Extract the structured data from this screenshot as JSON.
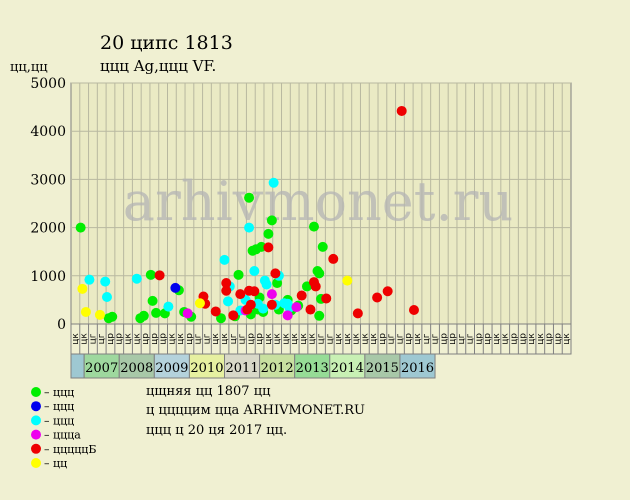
{
  "header": {
    "title": "20 ципс 1813",
    "subtitle": "ццц Ag,ццц VF.",
    "y_unit": "цц,цц"
  },
  "watermark": "arhivmonet.ru",
  "legend": [
    {
      "label": "– ццц",
      "color": "#00ee00"
    },
    {
      "label": "– ццц",
      "color": "#0000ee"
    },
    {
      "label": "– ццц",
      "color": "#00ffff"
    },
    {
      "label": "– цццa",
      "color": "#ee00ee"
    },
    {
      "label": "– цццццБ",
      "color": "#ee0000"
    },
    {
      "label": "– цц",
      "color": "#ffff00"
    }
  ],
  "notes": [
    "цщняя цц 1807 цц",
    "ц ццццим цца ARHIVMONET.RU",
    "ццц ц 20 ця 2017 цц."
  ],
  "chart_data": {
    "type": "scatter",
    "title": "20 ципс 1813",
    "subtitle": "ццц Ag,ццц VF.",
    "ylabel": "цц,цц",
    "ylim": [
      0,
      5000
    ],
    "yticks": [
      0,
      1000,
      2000,
      3000,
      4000,
      5000
    ],
    "grid": true,
    "x_first_year": 2007,
    "quarter_labels": [
      "цк",
      "цк",
      "цг",
      "цг",
      "цр",
      "цр",
      "цк",
      "цк",
      "цр",
      "цр",
      "цр",
      "цк",
      "цк",
      "цр",
      "цг",
      "цг",
      "цк",
      "цк",
      "цг",
      "цг",
      "цр",
      "цр",
      "цк",
      "цк",
      "цк",
      "цк",
      "цк",
      "цк",
      "цг",
      "цг",
      "цк",
      "цк",
      "цк",
      "цк",
      "цк",
      "цр",
      "цг",
      "цг",
      "цр",
      "цк",
      "цг",
      "цг",
      "цр",
      "цр",
      "цг",
      "цг",
      "цр",
      "цр",
      "цк",
      "цк",
      "цр",
      "цр",
      "цк",
      "цк",
      "цр",
      "цр",
      "цк"
    ],
    "year_labels": [
      {
        "label": "",
        "color": "#9ec8d2"
      },
      {
        "label": "2007",
        "color": "#9ed89e"
      },
      {
        "label": "2008",
        "color": "#a8c8a8"
      },
      {
        "label": "2009",
        "color": "#b4d2dc"
      },
      {
        "label": "2010",
        "color": "#e6f0a0"
      },
      {
        "label": "2011",
        "color": "#d8d8c8"
      },
      {
        "label": "2012",
        "color": "#c8e0a0"
      },
      {
        "label": "2013",
        "color": "#96dc96"
      },
      {
        "label": "2014",
        "color": "#c8f0b4"
      },
      {
        "label": "2015",
        "color": "#a8c8a8"
      },
      {
        "label": "2016",
        "color": "#9ec8d2"
      }
    ],
    "series": [
      {
        "color": "#00ee00",
        "points": [
          [
            2006.9,
            2000
          ],
          [
            2007.7,
            120
          ],
          [
            2007.8,
            150
          ],
          [
            2008.6,
            120
          ],
          [
            2008.7,
            170
          ],
          [
            2008.9,
            1020
          ],
          [
            2008.95,
            480
          ],
          [
            2009.05,
            230
          ],
          [
            2009.3,
            220
          ],
          [
            2009.7,
            700
          ],
          [
            2009.85,
            250
          ],
          [
            2010.05,
            150
          ],
          [
            2010.9,
            120
          ],
          [
            2011.3,
            160
          ],
          [
            2011.4,
            1020
          ],
          [
            2011.7,
            2620
          ],
          [
            2011.75,
            200
          ],
          [
            2011.8,
            1520
          ],
          [
            2011.9,
            1550
          ],
          [
            2011.95,
            300
          ],
          [
            2012.0,
            550
          ],
          [
            2012.05,
            1600
          ],
          [
            2012.1,
            250
          ],
          [
            2012.25,
            1870
          ],
          [
            2012.35,
            2150
          ],
          [
            2012.5,
            850
          ],
          [
            2012.55,
            300
          ],
          [
            2012.8,
            500
          ],
          [
            2012.9,
            280
          ],
          [
            2013.1,
            380
          ],
          [
            2013.35,
            780
          ],
          [
            2013.55,
            2020
          ],
          [
            2013.65,
            1100
          ],
          [
            2013.7,
            170
          ],
          [
            2013.75,
            520
          ],
          [
            2013.8,
            1600
          ],
          [
            2013.7,
            1050
          ]
        ]
      },
      {
        "color": "#0000ee",
        "points": [
          [
            2009.6,
            750
          ]
        ]
      },
      {
        "color": "#00ffff",
        "points": [
          [
            2007.15,
            920
          ],
          [
            2007.6,
            880
          ],
          [
            2007.65,
            560
          ],
          [
            2008.5,
            940
          ],
          [
            2009.4,
            360
          ],
          [
            2011.0,
            1330
          ],
          [
            2011.1,
            470
          ],
          [
            2011.15,
            780
          ],
          [
            2011.45,
            280
          ],
          [
            2011.6,
            500
          ],
          [
            2011.7,
            2000
          ],
          [
            2011.85,
            1100
          ],
          [
            2011.95,
            420
          ],
          [
            2012.1,
            320
          ],
          [
            2012.15,
            900
          ],
          [
            2012.2,
            820
          ],
          [
            2012.4,
            2930
          ],
          [
            2012.45,
            400
          ],
          [
            2012.55,
            1000
          ],
          [
            2012.7,
            430
          ],
          [
            2012.8,
            420
          ],
          [
            2012.85,
            340
          ]
        ]
      },
      {
        "color": "#ee00ee",
        "points": [
          [
            2009.95,
            220
          ],
          [
            2011.6,
            280
          ],
          [
            2012.35,
            620
          ],
          [
            2012.8,
            180
          ],
          [
            2013.05,
            350
          ]
        ]
      },
      {
        "color": "#ee0000",
        "points": [
          [
            2009.15,
            1010
          ],
          [
            2010.4,
            570
          ],
          [
            2010.45,
            420
          ],
          [
            2010.75,
            260
          ],
          [
            2011.05,
            690
          ],
          [
            2011.05,
            850
          ],
          [
            2011.25,
            180
          ],
          [
            2011.45,
            620
          ],
          [
            2011.65,
            300
          ],
          [
            2011.7,
            690
          ],
          [
            2011.75,
            400
          ],
          [
            2011.85,
            680
          ],
          [
            2012.25,
            1590
          ],
          [
            2012.35,
            400
          ],
          [
            2012.45,
            1050
          ],
          [
            2013.2,
            590
          ],
          [
            2013.45,
            300
          ],
          [
            2013.55,
            870
          ],
          [
            2013.6,
            780
          ],
          [
            2013.9,
            530
          ],
          [
            2014.1,
            1350
          ],
          [
            2014.8,
            220
          ],
          [
            2015.35,
            550
          ],
          [
            2015.65,
            680
          ],
          [
            2016.05,
            4420
          ],
          [
            2016.4,
            290
          ]
        ]
      },
      {
        "color": "#ffff00",
        "points": [
          [
            2006.95,
            730
          ],
          [
            2007.05,
            250
          ],
          [
            2007.45,
            190
          ],
          [
            2010.3,
            430
          ],
          [
            2014.5,
            900
          ]
        ]
      }
    ]
  }
}
